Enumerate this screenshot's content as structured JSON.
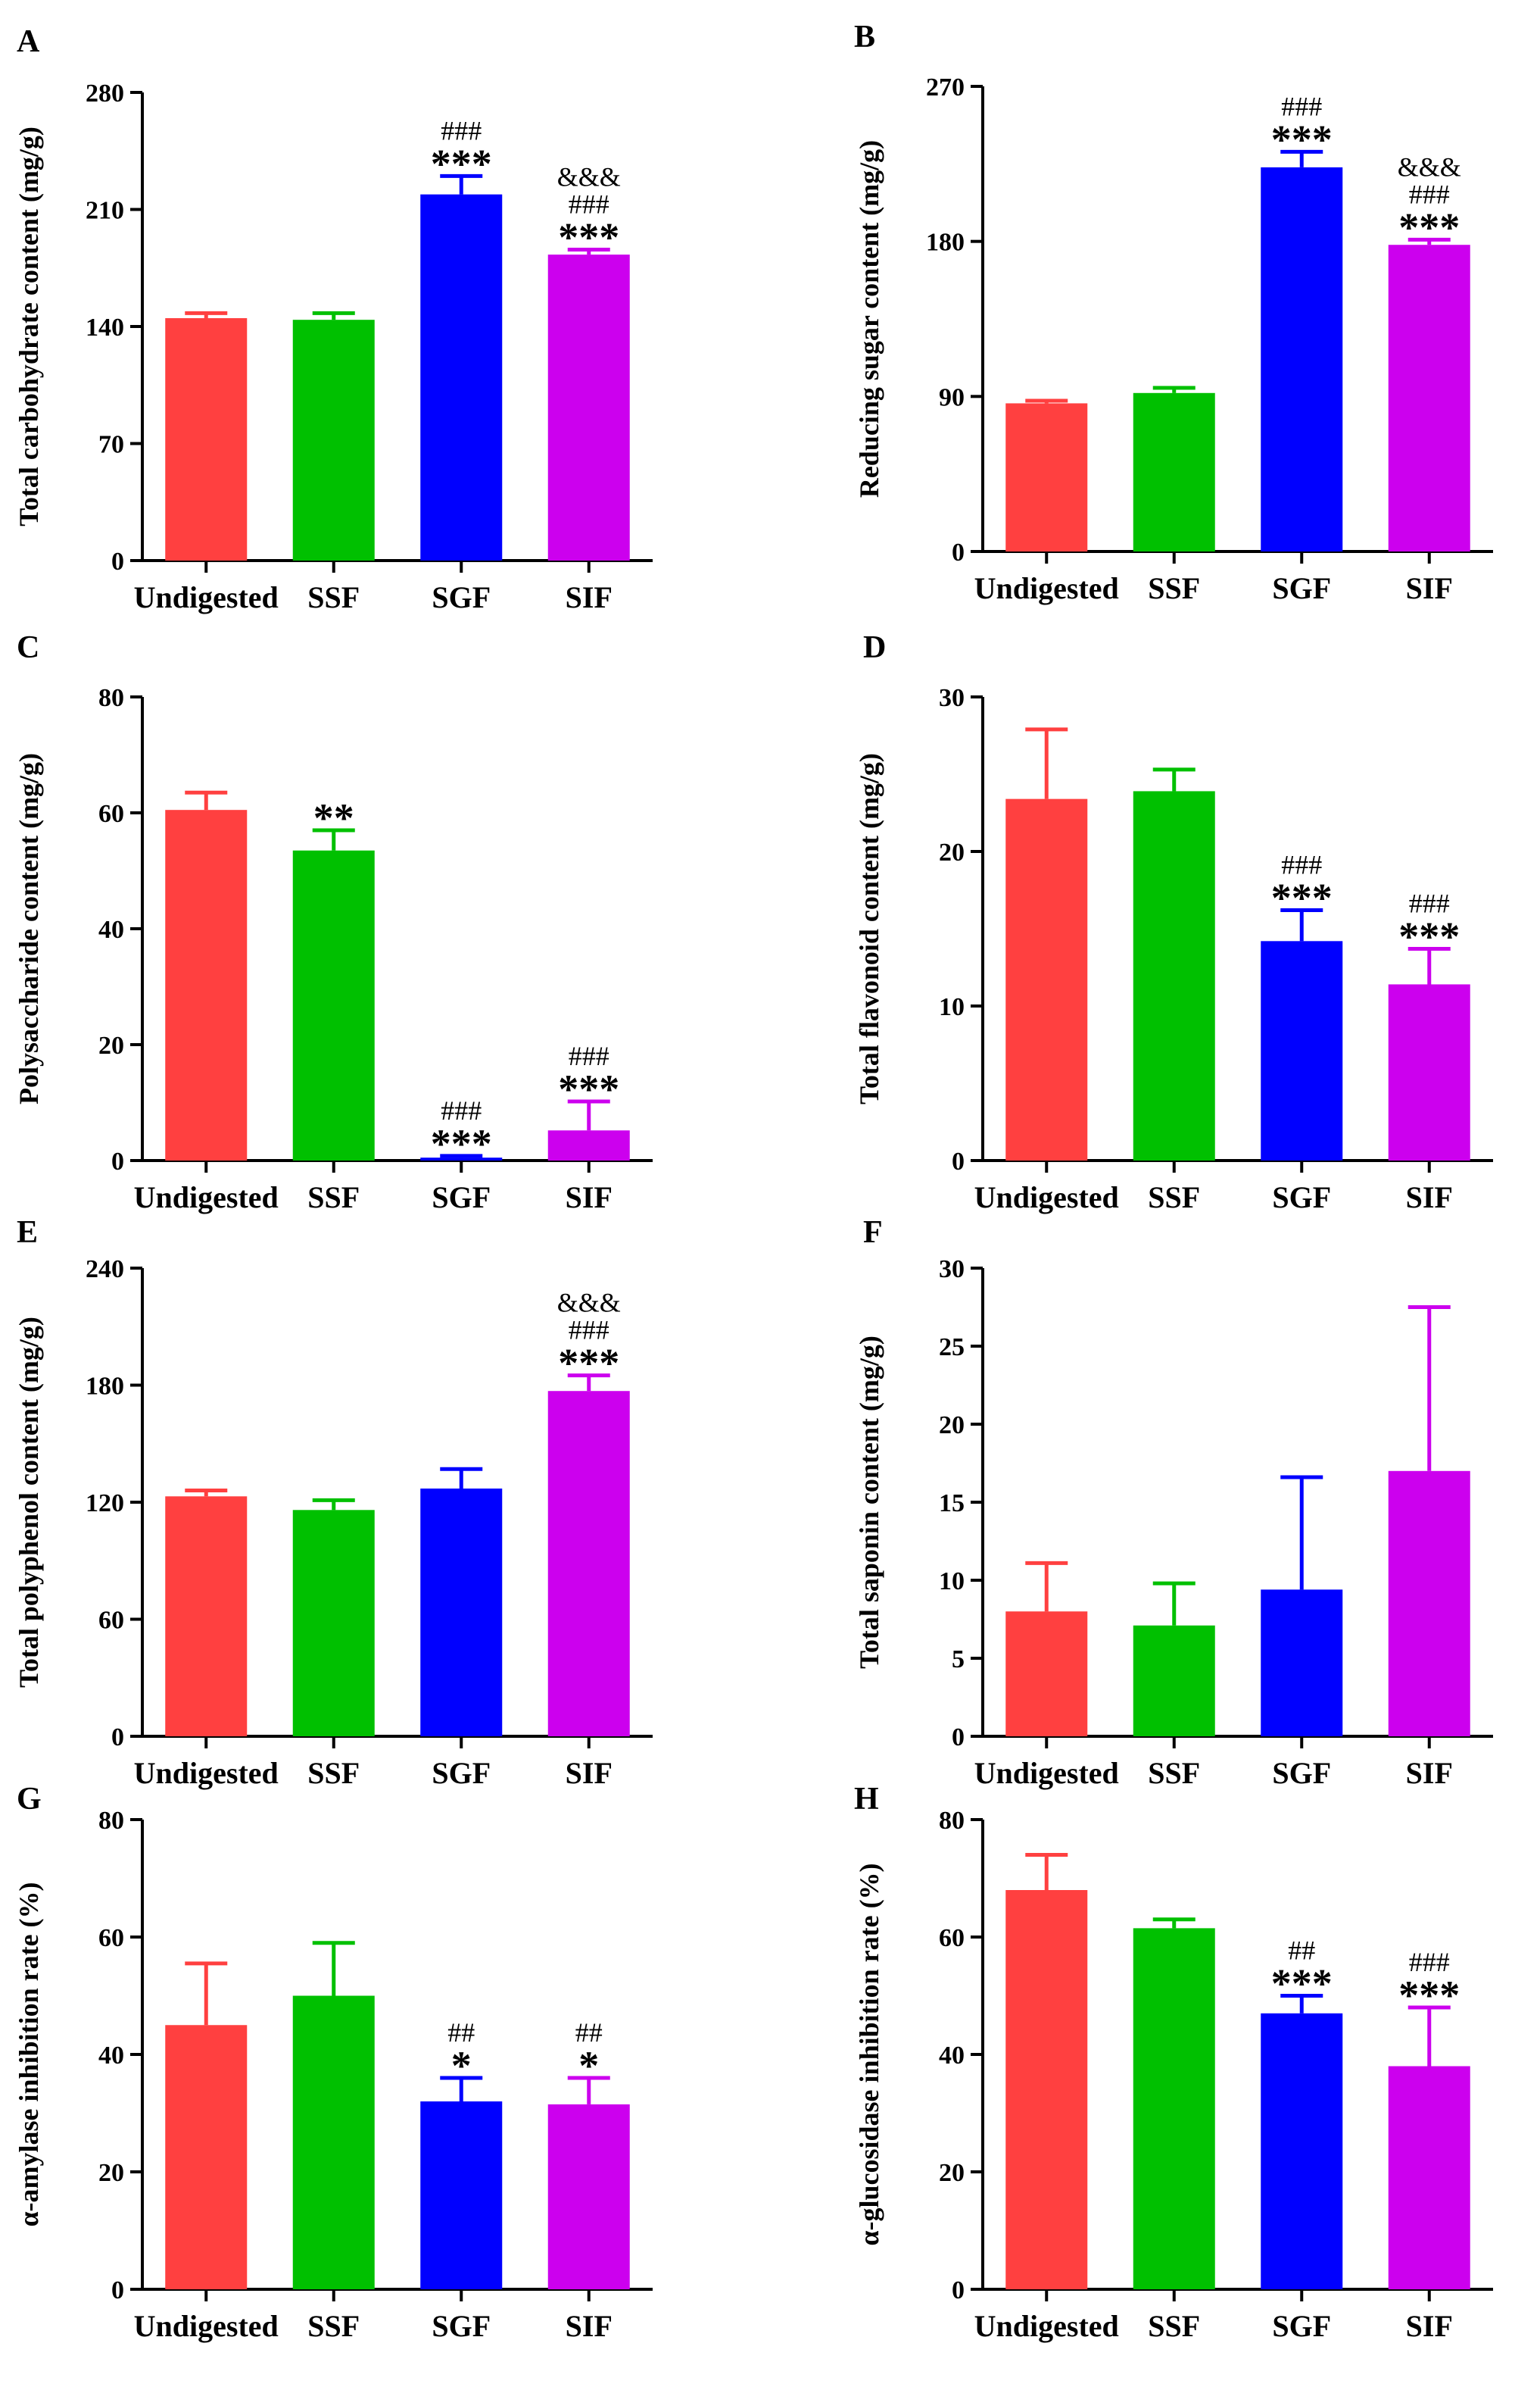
{
  "figure": {
    "colors": [
      "#ff4040",
      "#00c000",
      "#0000ff",
      "#cc00ee"
    ],
    "categories": [
      "Undigested",
      "SSF",
      "SGF",
      "SIF"
    ]
  },
  "chart_data": [
    {
      "panel": "A",
      "type": "bar",
      "ylabel": "Total carbohydrate content (mg/g)",
      "ylim": [
        0,
        280
      ],
      "yticks": [
        "0",
        "70",
        "140",
        "210",
        "280"
      ],
      "categories": [
        "Undigested",
        "SSF",
        "SGF",
        "SIF"
      ],
      "values": [
        145,
        144,
        219,
        183
      ],
      "errors": [
        3,
        4,
        11,
        3
      ],
      "significance": [
        [],
        [],
        [
          "***",
          "###"
        ],
        [
          "***",
          "###",
          "&&&"
        ]
      ]
    },
    {
      "panel": "B",
      "type": "bar",
      "ylabel": "Reducing sugar content (mg/g)",
      "ylim": [
        0,
        270
      ],
      "yticks": [
        "0",
        "90",
        "180",
        "270"
      ],
      "categories": [
        "Undigested",
        "SSF",
        "SGF",
        "SIF"
      ],
      "values": [
        86,
        92,
        223,
        178
      ],
      "errors": [
        1.5,
        3,
        9,
        3
      ],
      "significance": [
        [],
        [],
        [
          "***",
          "###"
        ],
        [
          "***",
          "###",
          "&&&"
        ]
      ]
    },
    {
      "panel": "C",
      "type": "bar",
      "ylabel": "Polysaccharide content (mg/g)",
      "ylim": [
        0,
        80
      ],
      "yticks": [
        "0",
        "20",
        "40",
        "60",
        "80"
      ],
      "categories": [
        "Undigested",
        "SSF",
        "SGF",
        "SIF"
      ],
      "values": [
        60.5,
        53.5,
        0.5,
        5.2
      ],
      "errors": [
        3,
        3.5,
        0.3,
        5
      ],
      "significance": [
        [],
        [
          "**"
        ],
        [
          "***",
          "###"
        ],
        [
          "***",
          "###"
        ]
      ]
    },
    {
      "panel": "D",
      "type": "bar",
      "ylabel": "Total flavonoid content (mg/g)",
      "ylim": [
        0,
        30
      ],
      "yticks": [
        "0",
        "10",
        "20",
        "30"
      ],
      "categories": [
        "Undigested",
        "SSF",
        "SGF",
        "SIF"
      ],
      "values": [
        23.4,
        23.9,
        14.2,
        11.4
      ],
      "errors": [
        4.5,
        1.4,
        2,
        2.3
      ],
      "significance": [
        [],
        [],
        [
          "***",
          "###"
        ],
        [
          "***",
          "###"
        ]
      ]
    },
    {
      "panel": "E",
      "type": "bar",
      "ylabel": "Total polyphenol content (mg/g)",
      "ylim": [
        0,
        240
      ],
      "yticks": [
        "0",
        "60",
        "120",
        "180",
        "240"
      ],
      "categories": [
        "Undigested",
        "SSF",
        "SGF",
        "SIF"
      ],
      "values": [
        123,
        116,
        127,
        177
      ],
      "errors": [
        3,
        5,
        10,
        8
      ],
      "significance": [
        [],
        [],
        [],
        [
          "***",
          "###",
          "&&&"
        ]
      ]
    },
    {
      "panel": "F",
      "type": "bar",
      "ylabel": "Total saponin content (mg/g)",
      "ylim": [
        0,
        30
      ],
      "yticks": [
        "0",
        "5",
        "10",
        "15",
        "20",
        "25",
        "30"
      ],
      "categories": [
        "Undigested",
        "SSF",
        "SGF",
        "SIF"
      ],
      "values": [
        8,
        7.1,
        9.4,
        17
      ],
      "errors": [
        3.1,
        2.7,
        7.2,
        10.5
      ],
      "significance": [
        [],
        [],
        [],
        []
      ]
    },
    {
      "panel": "G",
      "type": "bar",
      "ylabel": "α-amylase inhibition rate (%)",
      "ylim": [
        0,
        80
      ],
      "yticks": [
        "0",
        "20",
        "40",
        "60",
        "80"
      ],
      "categories": [
        "Undigested",
        "SSF",
        "SGF",
        "SIF"
      ],
      "values": [
        45,
        50,
        32,
        31.5
      ],
      "errors": [
        10.5,
        9,
        4,
        4.5
      ],
      "significance": [
        [],
        [],
        [
          "*",
          "##"
        ],
        [
          "*",
          "##"
        ]
      ]
    },
    {
      "panel": "H",
      "type": "bar",
      "ylabel": "α-glucosidase inhibition rate (%)",
      "ylim": [
        0,
        80
      ],
      "yticks": [
        "0",
        "20",
        "40",
        "60",
        "80"
      ],
      "categories": [
        "Undigested",
        "SSF",
        "SGF",
        "SIF"
      ],
      "values": [
        68,
        61.5,
        47,
        38
      ],
      "errors": [
        6,
        1.5,
        3,
        10
      ],
      "significance": [
        [],
        [],
        [
          "***",
          "##"
        ],
        [
          "***",
          "###"
        ]
      ]
    }
  ]
}
